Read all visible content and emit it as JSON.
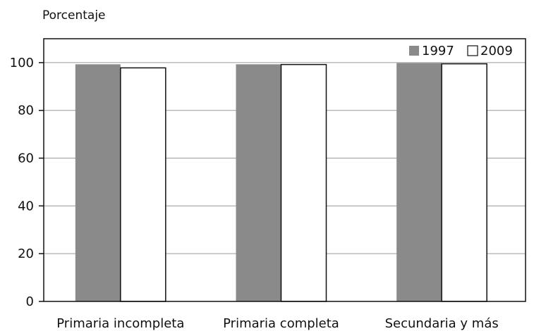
{
  "chart_data": {
    "type": "bar",
    "ylabel": "Porcentaje",
    "categories": [
      "Primaria incompleta",
      "Primaria completa",
      "Secundaria y más"
    ],
    "series": [
      {
        "name": "1997",
        "values": [
          99.3,
          99.3,
          99.8
        ],
        "color": "#8a8a8a"
      },
      {
        "name": "2009",
        "values": [
          97.8,
          99.2,
          99.5
        ],
        "color": "#ffffff"
      }
    ],
    "ylim": [
      0,
      110
    ],
    "yticks": [
      0,
      20,
      40,
      60,
      80,
      100
    ],
    "grid": true,
    "legend_position": "top-right"
  }
}
